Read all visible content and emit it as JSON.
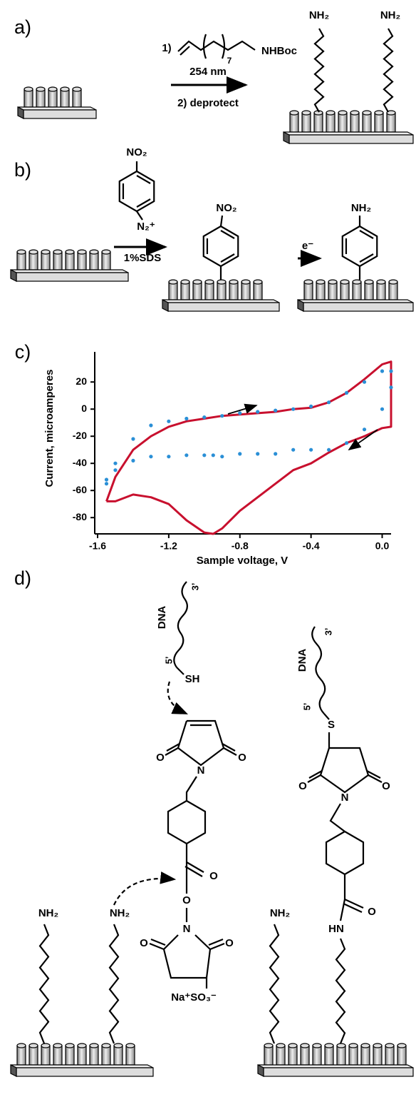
{
  "panels": {
    "a": {
      "label": "a)",
      "step1": "1)",
      "chain_repeat": "7",
      "reagent": "NHBoc",
      "condition": "254 nm",
      "step2": "2) deprotect",
      "products": [
        "NH₂",
        "NH₂"
      ]
    },
    "b": {
      "label": "b)",
      "reagent_group": "NO₂",
      "reagent_diazo": "N₂⁺",
      "condition": "1%SDS",
      "product_group": "NO₂",
      "reduction": "e⁻",
      "final_group": "NH₂"
    },
    "c": {
      "label": "c)"
    },
    "d": {
      "label": "d)",
      "left": {
        "dna": "DNA",
        "end3": "3’",
        "end5": "5’",
        "thiol": "SH",
        "maleimide_o": [
          "O",
          "O"
        ],
        "maleimide_n": "N",
        "ester_o": [
          "O",
          "O"
        ],
        "succinimide_n": "N",
        "succinimide_o": [
          "O",
          "O"
        ],
        "sulfonate": "Na⁺SO₃⁻",
        "amines": [
          "NH₂",
          "NH₂"
        ]
      },
      "right": {
        "dna": "DNA",
        "end3": "3’",
        "end5": "5’",
        "thioether": "S",
        "succinimide_o": [
          "O",
          "O"
        ],
        "succinimide_n": "N",
        "amide_o": "O",
        "amide_nh": "HN",
        "amine": "NH₂"
      }
    }
  },
  "chart_data": {
    "type": "line",
    "ylabel": "Current,  microamperes",
    "xlabel": "Sample voltage, V",
    "x": [
      -1.55,
      -1.5,
      -1.4,
      -1.3,
      -1.2,
      -1.1,
      -1.0,
      -0.9,
      -0.8,
      -0.7,
      -0.6,
      -0.5,
      -0.4,
      -0.3,
      -0.2,
      -0.1,
      0.0,
      0.05,
      0.05,
      0.0,
      -0.1,
      -0.2,
      -0.3,
      -0.4,
      -0.5,
      -0.6,
      -0.7,
      -0.8,
      -0.9,
      -0.95,
      -1.0,
      -1.1,
      -1.2,
      -1.3,
      -1.4,
      -1.5,
      -1.55
    ],
    "series": [
      {
        "color": "#c8102e",
        "style": "line",
        "values": [
          -68,
          -50,
          -30,
          -20,
          -13,
          -9,
          -7,
          -5,
          -4,
          -3,
          -2,
          0,
          1,
          5,
          12,
          22,
          33,
          35,
          -13,
          -14,
          -20,
          -25,
          -32,
          -40,
          -45,
          -55,
          -65,
          -75,
          -88,
          -92,
          -91,
          -82,
          -70,
          -65,
          -63,
          -68,
          -68
        ]
      },
      {
        "color": "#2a8fd6",
        "style": "dots",
        "values": [
          -55,
          -40,
          -22,
          -12,
          -9,
          -7,
          -6,
          -5,
          -3,
          -2,
          -1,
          0,
          2,
          5,
          12,
          20,
          28,
          28,
          16,
          0,
          -15,
          -25,
          -30,
          -30,
          -30,
          -33,
          -33,
          -33,
          -35,
          -34,
          -34,
          -34,
          -35,
          -35,
          -38,
          -45,
          -52
        ]
      }
    ],
    "xlim": [
      -1.6,
      0.05
    ],
    "xticks": [
      -1.6,
      -1.2,
      -0.8,
      -0.4,
      {
        "value": 0,
        "label": "0.0"
      }
    ],
    "ylim": [
      -92,
      38
    ],
    "yticks": [
      -80,
      -60,
      -40,
      -20,
      0,
      20
    ]
  }
}
